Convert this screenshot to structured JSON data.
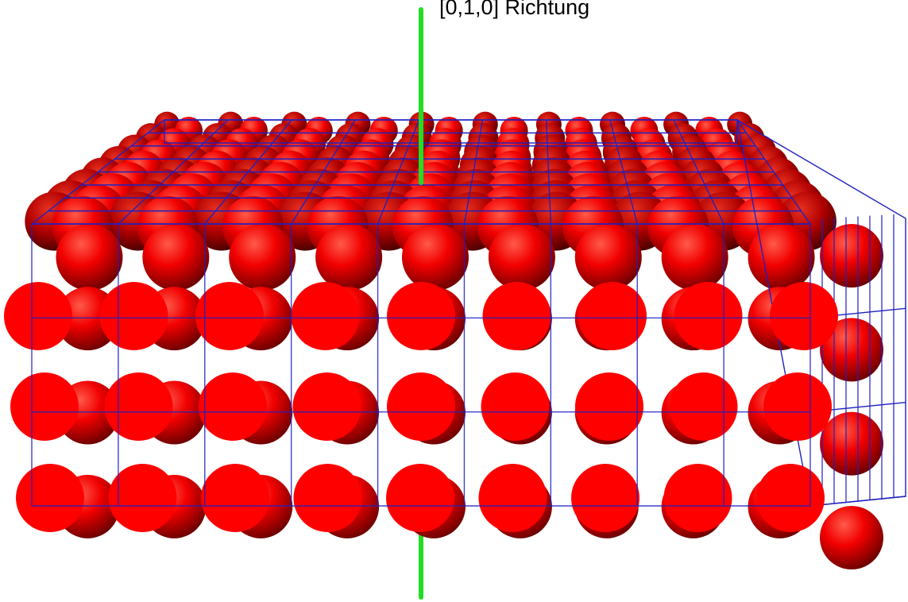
{
  "axis": {
    "label": "[0,1,0] Richtung",
    "color": "#22dd22"
  },
  "lattice": {
    "atom_color": "#ff0000",
    "wire_color": "#2020c0",
    "front_grid_cols": 9,
    "front_grid_rows": 3,
    "depth_layers": 8
  }
}
